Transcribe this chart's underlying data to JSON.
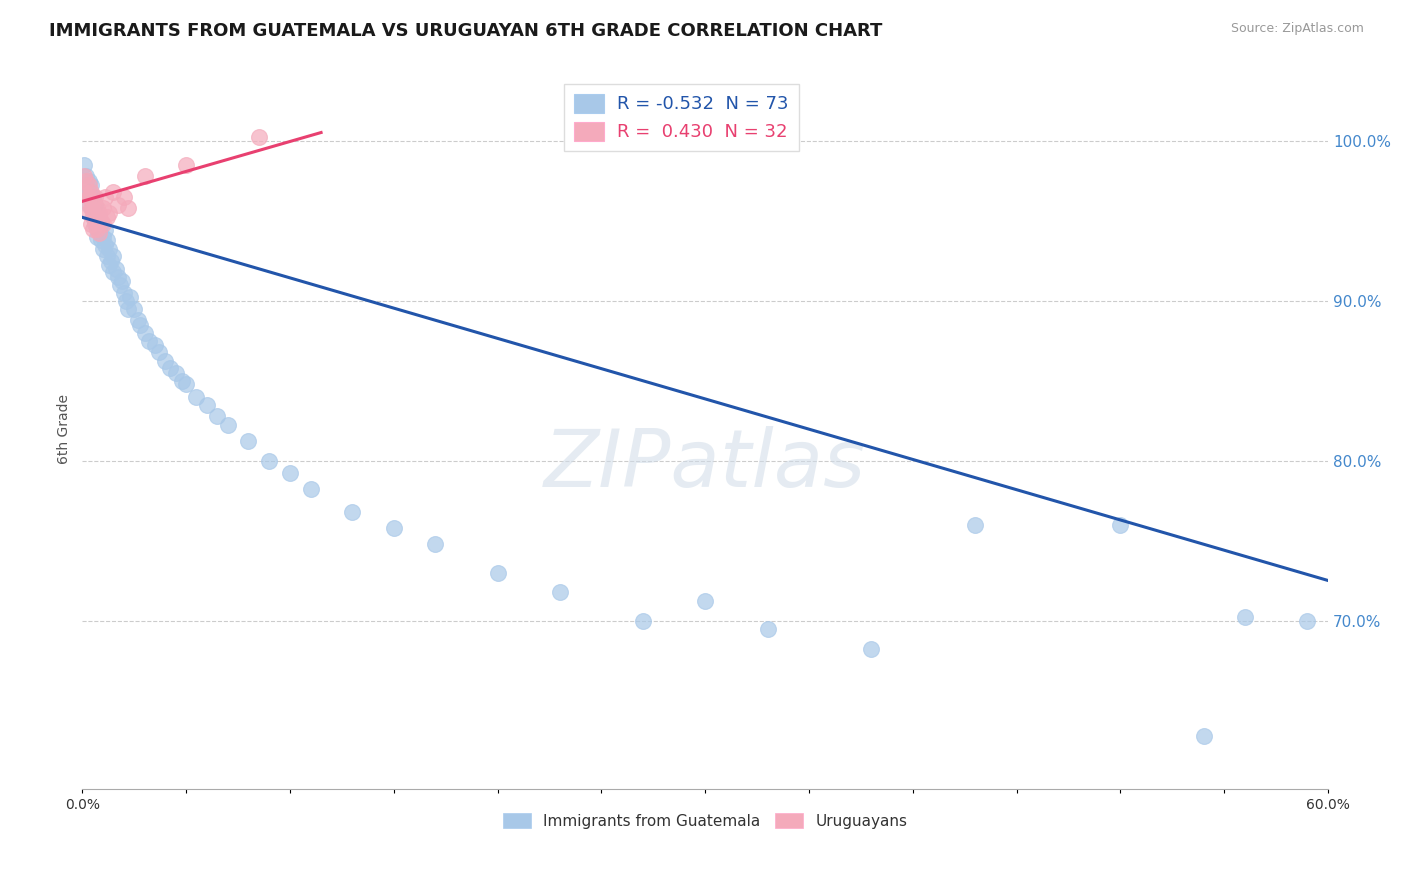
{
  "title": "IMMIGRANTS FROM GUATEMALA VS URUGUAYAN 6TH GRADE CORRELATION CHART",
  "source": "Source: ZipAtlas.com",
  "ylabel": "6th Grade",
  "legend_label_blue": "Immigrants from Guatemala",
  "legend_label_pink": "Uruguayans",
  "R_blue": -0.532,
  "N_blue": 73,
  "R_pink": 0.43,
  "N_pink": 32,
  "color_blue": "#A8C8E8",
  "color_pink": "#F4AABB",
  "color_trendline_blue": "#2255AA",
  "color_trendline_pink": "#E84070",
  "watermark": "ZIPatlas",
  "xmin": 0.0,
  "xmax": 0.6,
  "ymin": 0.595,
  "ymax": 1.045,
  "yticks": [
    0.7,
    0.8,
    0.9,
    1.0
  ],
  "ytick_labels": [
    "70.0%",
    "80.0%",
    "90.0%",
    "100.0%"
  ],
  "blue_trendline_x": [
    0.0,
    0.6
  ],
  "blue_trendline_y": [
    0.952,
    0.725
  ],
  "pink_trendline_x": [
    0.0,
    0.115
  ],
  "pink_trendline_y": [
    0.962,
    1.005
  ],
  "blue_x": [
    0.001,
    0.002,
    0.002,
    0.003,
    0.003,
    0.003,
    0.004,
    0.004,
    0.005,
    0.005,
    0.005,
    0.006,
    0.006,
    0.007,
    0.007,
    0.007,
    0.008,
    0.008,
    0.009,
    0.009,
    0.01,
    0.01,
    0.011,
    0.011,
    0.012,
    0.012,
    0.013,
    0.013,
    0.014,
    0.015,
    0.015,
    0.016,
    0.017,
    0.018,
    0.019,
    0.02,
    0.021,
    0.022,
    0.023,
    0.025,
    0.027,
    0.028,
    0.03,
    0.032,
    0.035,
    0.037,
    0.04,
    0.042,
    0.045,
    0.048,
    0.05,
    0.055,
    0.06,
    0.065,
    0.07,
    0.08,
    0.09,
    0.1,
    0.11,
    0.13,
    0.15,
    0.17,
    0.2,
    0.23,
    0.27,
    0.3,
    0.33,
    0.38,
    0.43,
    0.5,
    0.54,
    0.56,
    0.59
  ],
  "blue_y": [
    0.985,
    0.978,
    0.97,
    0.975,
    0.968,
    0.96,
    0.972,
    0.965,
    0.958,
    0.965,
    0.952,
    0.96,
    0.948,
    0.955,
    0.948,
    0.94,
    0.952,
    0.944,
    0.948,
    0.938,
    0.94,
    0.932,
    0.944,
    0.935,
    0.938,
    0.928,
    0.932,
    0.922,
    0.925,
    0.928,
    0.918,
    0.92,
    0.915,
    0.91,
    0.912,
    0.905,
    0.9,
    0.895,
    0.902,
    0.895,
    0.888,
    0.885,
    0.88,
    0.875,
    0.872,
    0.868,
    0.862,
    0.858,
    0.855,
    0.85,
    0.848,
    0.84,
    0.835,
    0.828,
    0.822,
    0.812,
    0.8,
    0.792,
    0.782,
    0.768,
    0.758,
    0.748,
    0.73,
    0.718,
    0.7,
    0.712,
    0.695,
    0.682,
    0.76,
    0.76,
    0.628,
    0.702,
    0.7
  ],
  "pink_x": [
    0.001,
    0.001,
    0.002,
    0.002,
    0.003,
    0.003,
    0.003,
    0.004,
    0.004,
    0.004,
    0.005,
    0.005,
    0.005,
    0.006,
    0.006,
    0.007,
    0.007,
    0.008,
    0.008,
    0.009,
    0.01,
    0.01,
    0.011,
    0.012,
    0.013,
    0.015,
    0.017,
    0.02,
    0.022,
    0.03,
    0.05,
    0.085
  ],
  "pink_y": [
    0.978,
    0.968,
    0.975,
    0.962,
    0.972,
    0.965,
    0.955,
    0.968,
    0.958,
    0.948,
    0.962,
    0.955,
    0.945,
    0.965,
    0.95,
    0.958,
    0.945,
    0.955,
    0.942,
    0.95,
    0.948,
    0.958,
    0.965,
    0.952,
    0.955,
    0.968,
    0.96,
    0.965,
    0.958,
    0.978,
    0.985,
    1.002
  ]
}
